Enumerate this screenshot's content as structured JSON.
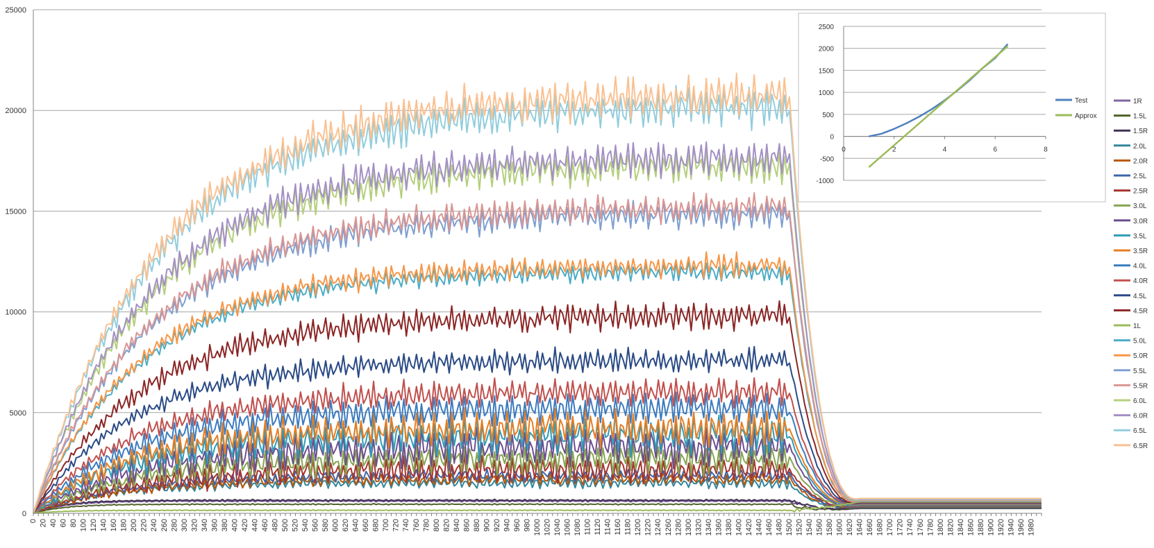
{
  "chart_data": [
    {
      "type": "line",
      "title": "",
      "xlabel": "",
      "ylabel": "",
      "ylim": [
        0,
        25000
      ],
      "xlim": [
        0,
        2000
      ],
      "y_ticks": [
        "0",
        "5000",
        "10000",
        "15000",
        "20000",
        "25000"
      ],
      "x_tick_step": 20,
      "grid": true,
      "legend_position": "right",
      "series": [
        {
          "name": "1R",
          "color": "#8064a2",
          "plateau": 600,
          "rise_rate": 60,
          "amplitude": 40,
          "wave_period": 12
        },
        {
          "name": "1.5L",
          "color": "#4f6228",
          "plateau": 450,
          "rise_rate": 60,
          "amplitude": 30,
          "wave_period": 12
        },
        {
          "name": "1.5R",
          "color": "#403151",
          "plateau": 650,
          "rise_rate": 60,
          "amplitude": 40,
          "wave_period": 12
        },
        {
          "name": "2.0L",
          "color": "#31859c",
          "plateau": 1500,
          "rise_rate": 150,
          "amplitude": 250,
          "wave_period": 14
        },
        {
          "name": "2.0R",
          "color": "#b65708",
          "plateau": 1700,
          "rise_rate": 180,
          "amplitude": 300,
          "wave_period": 14
        },
        {
          "name": "2.5L",
          "color": "#3f64a8",
          "plateau": 1900,
          "rise_rate": 180,
          "amplitude": 300,
          "wave_period": 14
        },
        {
          "name": "2.5R",
          "color": "#a5342f",
          "plateau": 2200,
          "rise_rate": 200,
          "amplitude": 700,
          "wave_period": 12
        },
        {
          "name": "3.0L",
          "color": "#86a34f",
          "plateau": 2700,
          "rise_rate": 200,
          "amplitude": 800,
          "wave_period": 12
        },
        {
          "name": "3.0R",
          "color": "#6c4e8f",
          "plateau": 3300,
          "rise_rate": 200,
          "amplitude": 1000,
          "wave_period": 12
        },
        {
          "name": "3.5L",
          "color": "#2f9bb5",
          "plateau": 3900,
          "rise_rate": 200,
          "amplitude": 1000,
          "wave_period": 12
        },
        {
          "name": "3.5R",
          "color": "#e67e22",
          "plateau": 4300,
          "rise_rate": 200,
          "amplitude": 900,
          "wave_period": 12
        },
        {
          "name": "4.0L",
          "color": "#3b7bbf",
          "plateau": 5200,
          "rise_rate": 200,
          "amplitude": 800,
          "wave_period": 12
        },
        {
          "name": "4.0R",
          "color": "#c0504d",
          "plateau": 6000,
          "rise_rate": 200,
          "amplitude": 700,
          "wave_period": 12
        },
        {
          "name": "4.5L",
          "color": "#2a4a85",
          "plateau": 7600,
          "rise_rate": 200,
          "amplitude": 600,
          "wave_period": 12
        },
        {
          "name": "4.5R",
          "color": "#8b2525",
          "plateau": 9800,
          "rise_rate": 220,
          "amplitude": 700,
          "wave_period": 12
        },
        {
          "name": "1L",
          "color": "#9bbb59",
          "plateau": 150,
          "rise_rate": 60,
          "amplitude": 20,
          "wave_period": 12
        },
        {
          "name": "5.0L",
          "color": "#4bacc6",
          "plateau": 12000,
          "rise_rate": 220,
          "amplitude": 500,
          "wave_period": 12
        },
        {
          "name": "5.0R",
          "color": "#f79646",
          "plateau": 12300,
          "rise_rate": 220,
          "amplitude": 600,
          "wave_period": 12
        },
        {
          "name": "5.5L",
          "color": "#7f9fcf",
          "plateau": 14900,
          "rise_rate": 240,
          "amplitude": 700,
          "wave_period": 12
        },
        {
          "name": "5.5R",
          "color": "#d99694",
          "plateau": 15200,
          "rise_rate": 240,
          "amplitude": 700,
          "wave_period": 12
        },
        {
          "name": "6.0L",
          "color": "#b4cf7d",
          "plateau": 17300,
          "rise_rate": 240,
          "amplitude": 900,
          "wave_period": 12
        },
        {
          "name": "6.0R",
          "color": "#a390c4",
          "plateau": 17700,
          "rise_rate": 240,
          "amplitude": 900,
          "wave_period": 12
        },
        {
          "name": "6.5L",
          "color": "#92cddc",
          "plateau": 20200,
          "rise_rate": 250,
          "amplitude": 1000,
          "wave_period": 12
        },
        {
          "name": "6.5R",
          "color": "#fac090",
          "plateau": 20800,
          "rise_rate": 250,
          "amplitude": 1000,
          "wave_period": 12
        }
      ],
      "drop_start": 1500,
      "drop_end": 1640,
      "flat_tail_value": 500
    },
    {
      "type": "line",
      "title": "",
      "xlim": [
        0,
        8
      ],
      "ylim": [
        -1000,
        2500
      ],
      "x_ticks": [
        "0",
        "2",
        "4",
        "6",
        "8"
      ],
      "y_ticks": [
        "-1000",
        "-500",
        "0",
        "500",
        "1000",
        "1500",
        "2000",
        "2500"
      ],
      "grid": true,
      "legend_position": "right",
      "series": [
        {
          "name": "Test",
          "color": "#4f81bd",
          "x": [
            1,
            1.5,
            2,
            2.5,
            3,
            3.5,
            4,
            4.5,
            5,
            5.5,
            6,
            6.5
          ],
          "y": [
            0,
            60,
            170,
            300,
            450,
            620,
            820,
            1040,
            1280,
            1550,
            1780,
            2100
          ]
        },
        {
          "name": "Approx",
          "color": "#9bbb59",
          "x": [
            1,
            6.5
          ],
          "y": [
            -700,
            2050
          ]
        }
      ]
    }
  ]
}
